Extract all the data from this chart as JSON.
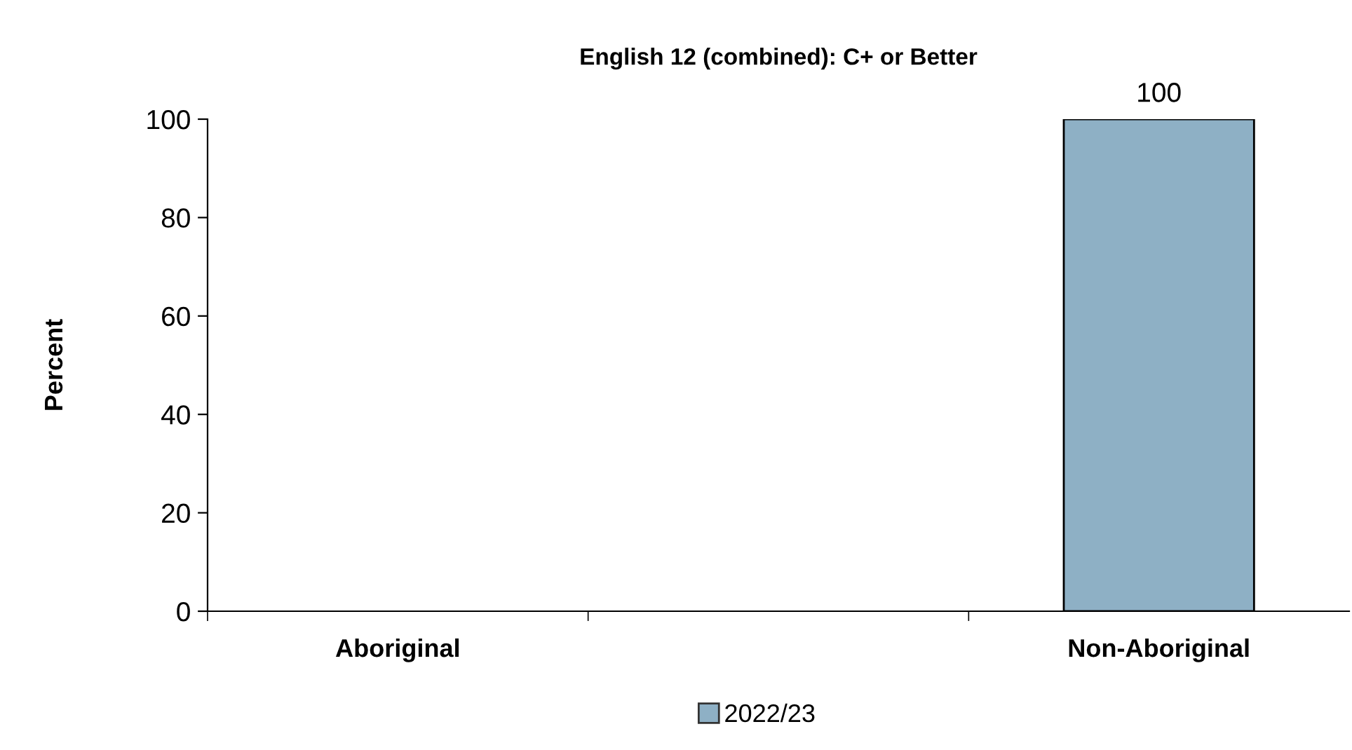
{
  "chart_data": {
    "type": "bar",
    "title": "English 12 (combined): C+ or Better",
    "ylabel": "Percent",
    "categories": [
      "Aboriginal",
      null,
      "Non-Aboriginal"
    ],
    "series": [
      {
        "name": "2022/23",
        "color": "#8eb0c5",
        "values": [
          null,
          null,
          100
        ]
      }
    ],
    "ylim": [
      0,
      100
    ],
    "yticks": [
      0,
      20,
      40,
      60,
      80,
      100
    ],
    "grid": false,
    "legend": "bottom",
    "data_labels": true
  }
}
